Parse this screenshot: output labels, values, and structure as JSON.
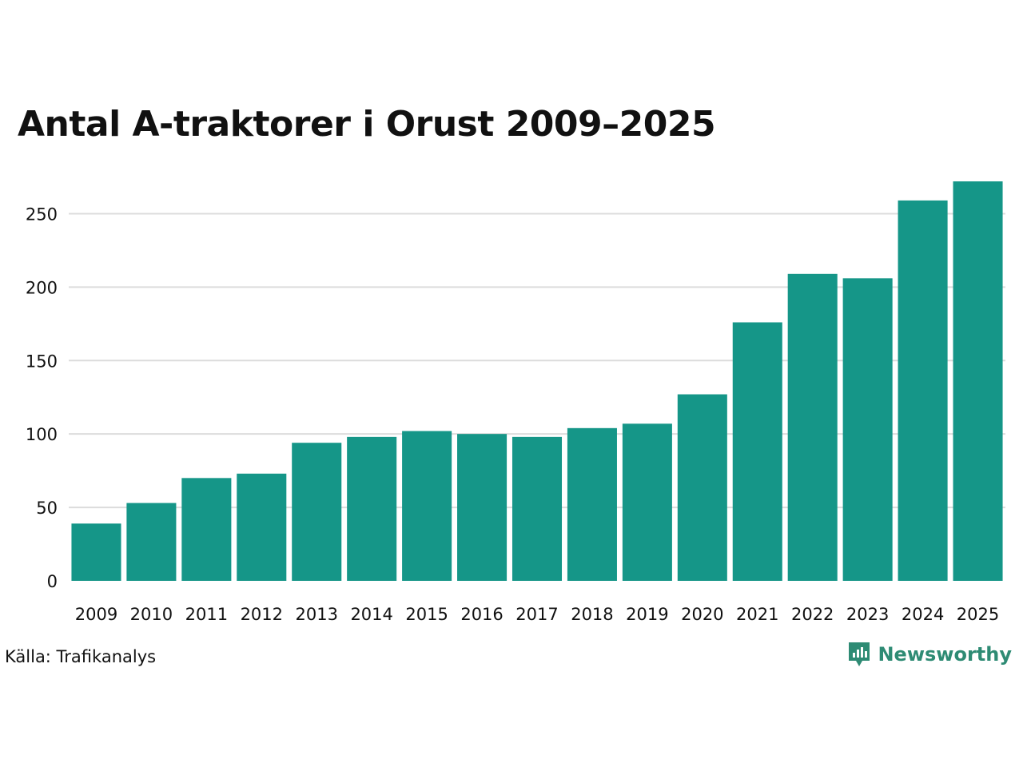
{
  "title": "Antal A-traktorer i Orust 2009–2025",
  "source": "Källa: Trafikanalys",
  "brand": {
    "name": "Newsworthy",
    "icon": "newsworthy-logo-icon",
    "color": "#2e8b74"
  },
  "colors": {
    "bar": "#159688",
    "grid": "#dcdcdc"
  },
  "chart_data": {
    "type": "bar",
    "title": "Antal A-traktorer i Orust 2009–2025",
    "xlabel": "",
    "ylabel": "",
    "categories": [
      "2009",
      "2010",
      "2011",
      "2012",
      "2013",
      "2014",
      "2015",
      "2016",
      "2017",
      "2018",
      "2019",
      "2020",
      "2021",
      "2022",
      "2023",
      "2024",
      "2025"
    ],
    "values": [
      39,
      53,
      70,
      73,
      94,
      98,
      102,
      100,
      98,
      104,
      107,
      127,
      176,
      209,
      206,
      259,
      272
    ],
    "ylim": [
      0,
      272
    ],
    "yticks": [
      0,
      50,
      100,
      150,
      200,
      250
    ],
    "grid": true,
    "legend": "none"
  }
}
